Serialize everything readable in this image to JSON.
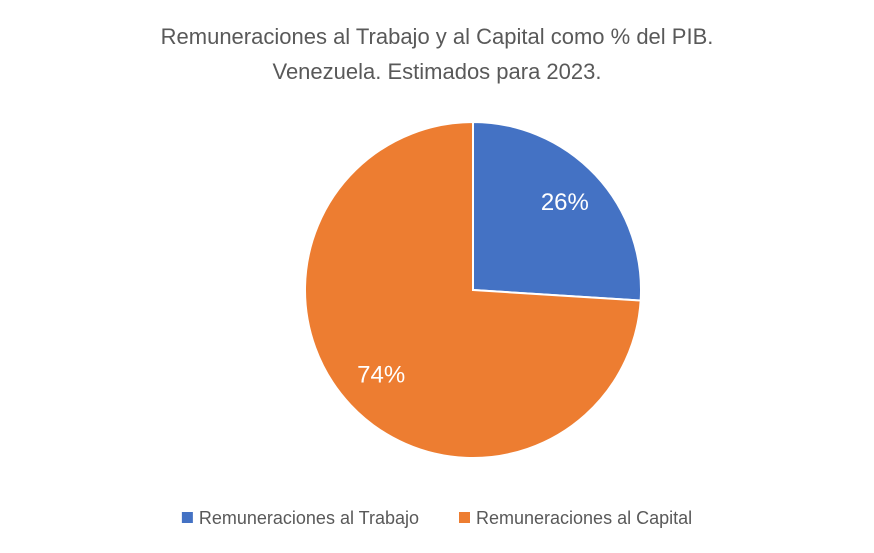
{
  "chart_data": {
    "type": "pie",
    "title": "Remuneraciones al Trabajo y al Capital como % del PIB.",
    "subtitle": "Venezuela. Estimados para 2023.",
    "categories": [
      "Remuneraciones al Trabajo",
      "Remuneraciones al Capital"
    ],
    "values": [
      26,
      74
    ],
    "value_labels": [
      "26%",
      "74%"
    ],
    "colors": [
      "#4472c4",
      "#ed7d31"
    ],
    "legend": "bottom"
  }
}
